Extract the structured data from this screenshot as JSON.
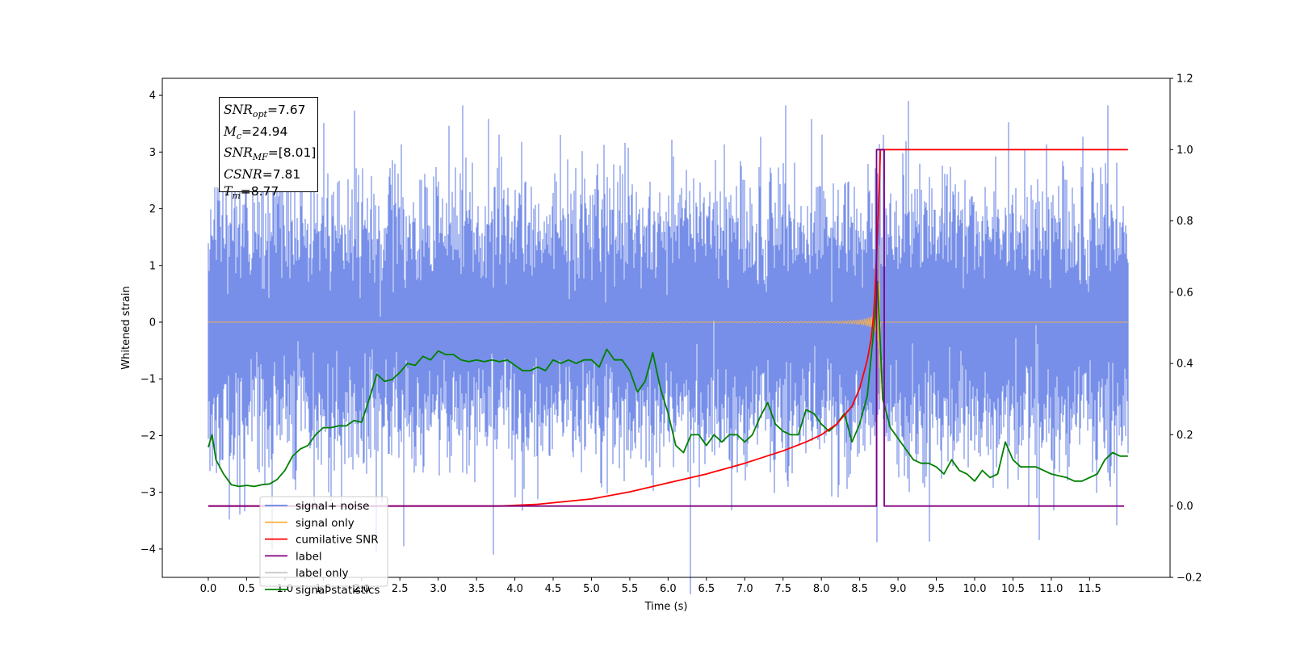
{
  "chart_data": {
    "type": "line",
    "xlabel": "Time (s)",
    "ylabel": "Whitened strain",
    "xlim": [
      -0.6,
      12.55
    ],
    "ylim_left": [
      -4.5,
      4.3
    ],
    "ylim_right": [
      -0.2,
      1.2
    ],
    "x_ticks": [
      "0.0",
      "0.5",
      "1.0",
      "1.5",
      "2.0",
      "2.5",
      "3.0",
      "3.5",
      "4.0",
      "4.5",
      "5.0",
      "5.5",
      "6.0",
      "6.5",
      "7.0",
      "7.5",
      "8.0",
      "8.5",
      "9.0",
      "9.5",
      "10.0",
      "10.5",
      "11.0",
      "11.5"
    ],
    "y_ticks_left": [
      "4",
      "3",
      "2",
      "1",
      "0",
      "−1",
      "−2",
      "−3",
      "−4"
    ],
    "y_ticks_right": [
      "1.2",
      "1.0",
      "0.8",
      "0.6",
      "0.4",
      "0.2",
      "0.0",
      "−0.2"
    ],
    "grid": false,
    "legend_position": "lower-left",
    "legend": [
      {
        "label": "signal+ noise",
        "color": "#6b85e6"
      },
      {
        "label": "signal only",
        "color": "#ffb347"
      },
      {
        "label": "cumilative SNR",
        "color": "#ff0000"
      },
      {
        "label": "label",
        "color": "#800080"
      },
      {
        "label": "label only",
        "color": "#c8c8c8"
      },
      {
        "label": "signal statistics",
        "color": "#008000"
      }
    ],
    "annotation": {
      "lines": [
        {
          "sym": "SNR",
          "sub": "opt",
          "value": "=7.67"
        },
        {
          "sym": "M",
          "sub": "c",
          "value": "=24.94"
        },
        {
          "sym": "SNR",
          "sub": "MF",
          "value": "=[8.01]"
        },
        {
          "sym": "CSNR",
          "sub": "",
          "value": "=7.81"
        },
        {
          "sym": "T",
          "sub": "m",
          "value": "=8.77"
        }
      ]
    },
    "series": [
      {
        "name": "signal+ noise",
        "axis": "left",
        "color": "#6b85e6",
        "x_range": [
          0.0,
          12.0
        ],
        "sample_rate_hz": 1024,
        "noise_std": 1.0,
        "notable_peaks": [
          [
            1.91,
            3.73
          ],
          [
            9.14,
            3.9
          ],
          [
            3.72,
            -4.1
          ],
          [
            2.55,
            -3.95
          ],
          [
            8.73,
            -3.88
          ],
          [
            11.85,
            -3.58
          ]
        ]
      },
      {
        "name": "signal only",
        "axis": "left",
        "color": "#ffb347",
        "type": "chirp",
        "x_range": [
          0.0,
          12.0
        ],
        "merger_time": 8.77,
        "peak_amplitude": 2.5
      },
      {
        "name": "cumilative SNR",
        "axis": "right",
        "color": "#ff0000",
        "x": [
          0.0,
          3.8,
          4.3,
          5.0,
          5.5,
          6.0,
          6.5,
          7.0,
          7.5,
          7.8,
          8.0,
          8.2,
          8.4,
          8.5,
          8.6,
          8.65,
          8.68,
          8.7,
          8.72,
          8.74,
          8.76,
          8.77,
          8.8,
          12.0
        ],
        "y": [
          0.0,
          0.0,
          0.005,
          0.02,
          0.04,
          0.065,
          0.09,
          0.12,
          0.155,
          0.18,
          0.2,
          0.23,
          0.28,
          0.33,
          0.41,
          0.47,
          0.53,
          0.6,
          0.7,
          0.8,
          0.92,
          1.0,
          1.0,
          1.0
        ]
      },
      {
        "name": "label",
        "axis": "right",
        "color": "#800080",
        "x": [
          0.0,
          8.72,
          8.72,
          8.82,
          8.82,
          11.95
        ],
        "y": [
          0.0,
          0.0,
          1.0,
          1.0,
          0.0,
          0.0
        ]
      },
      {
        "name": "signal statistics",
        "axis": "right",
        "color": "#008000",
        "x": [
          0.0,
          0.05,
          0.1,
          0.2,
          0.3,
          0.4,
          0.5,
          0.6,
          0.7,
          0.8,
          0.9,
          1.0,
          1.1,
          1.2,
          1.3,
          1.4,
          1.5,
          1.6,
          1.7,
          1.8,
          1.9,
          2.0,
          2.1,
          2.2,
          2.3,
          2.4,
          2.5,
          2.6,
          2.7,
          2.8,
          2.9,
          3.0,
          3.1,
          3.2,
          3.3,
          3.4,
          3.5,
          3.6,
          3.7,
          3.8,
          3.9,
          4.0,
          4.1,
          4.2,
          4.3,
          4.4,
          4.5,
          4.6,
          4.7,
          4.8,
          4.9,
          5.0,
          5.1,
          5.2,
          5.3,
          5.4,
          5.5,
          5.6,
          5.7,
          5.8,
          5.9,
          6.0,
          6.1,
          6.2,
          6.3,
          6.4,
          6.5,
          6.6,
          6.7,
          6.8,
          6.9,
          7.0,
          7.1,
          7.2,
          7.3,
          7.4,
          7.5,
          7.6,
          7.7,
          7.8,
          7.9,
          8.0,
          8.1,
          8.2,
          8.3,
          8.4,
          8.5,
          8.6,
          8.7,
          8.73,
          8.76,
          8.8,
          8.9,
          9.0,
          9.1,
          9.2,
          9.3,
          9.4,
          9.5,
          9.6,
          9.7,
          9.8,
          9.9,
          10.0,
          10.1,
          10.2,
          10.3,
          10.4,
          10.5,
          10.6,
          10.7,
          10.8,
          10.9,
          11.0,
          11.1,
          11.2,
          11.3,
          11.4,
          11.5,
          11.6,
          11.7,
          11.8,
          11.9,
          12.0
        ],
        "y": [
          0.165,
          0.2,
          0.13,
          0.09,
          0.06,
          0.055,
          0.058,
          0.055,
          0.06,
          0.062,
          0.075,
          0.1,
          0.14,
          0.16,
          0.17,
          0.2,
          0.22,
          0.22,
          0.225,
          0.225,
          0.24,
          0.235,
          0.3,
          0.37,
          0.35,
          0.355,
          0.375,
          0.4,
          0.395,
          0.42,
          0.41,
          0.435,
          0.425,
          0.425,
          0.41,
          0.405,
          0.41,
          0.405,
          0.41,
          0.405,
          0.41,
          0.395,
          0.38,
          0.38,
          0.39,
          0.38,
          0.41,
          0.4,
          0.41,
          0.4,
          0.41,
          0.41,
          0.39,
          0.44,
          0.41,
          0.41,
          0.38,
          0.32,
          0.35,
          0.43,
          0.33,
          0.26,
          0.17,
          0.15,
          0.2,
          0.2,
          0.17,
          0.2,
          0.18,
          0.2,
          0.2,
          0.18,
          0.2,
          0.25,
          0.29,
          0.23,
          0.21,
          0.2,
          0.2,
          0.27,
          0.26,
          0.23,
          0.21,
          0.23,
          0.26,
          0.18,
          0.23,
          0.31,
          0.53,
          0.63,
          0.5,
          0.3,
          0.22,
          0.19,
          0.16,
          0.13,
          0.12,
          0.12,
          0.11,
          0.09,
          0.13,
          0.1,
          0.09,
          0.07,
          0.1,
          0.08,
          0.09,
          0.18,
          0.13,
          0.11,
          0.11,
          0.11,
          0.1,
          0.09,
          0.085,
          0.08,
          0.07,
          0.07,
          0.08,
          0.09,
          0.13,
          0.15,
          0.14,
          0.14
        ]
      }
    ]
  }
}
